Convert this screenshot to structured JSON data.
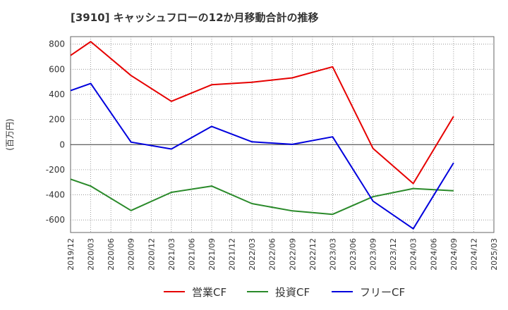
{
  "chart_data": {
    "type": "line",
    "title": "[3910]  キャッシュフローの12か月移動合計の推移",
    "ylabel": "(百万円)",
    "xlabel": "",
    "ylim": [
      -700,
      860
    ],
    "yticks": [
      800,
      600,
      400,
      200,
      0,
      -200,
      -400,
      -600
    ],
    "x": [
      "2019/12",
      "2020/03",
      "2020/06",
      "2020/09",
      "2020/12",
      "2021/03",
      "2021/06",
      "2021/09",
      "2021/12",
      "2022/03",
      "2022/06",
      "2022/09",
      "2022/12",
      "2023/03",
      "2023/06",
      "2023/09",
      "2023/12",
      "2024/03",
      "2024/06",
      "2024/09",
      "2024/12",
      "2025/03"
    ],
    "grid": true,
    "legend_position": "bottom",
    "series": [
      {
        "name": "営業CF",
        "color": "#e60000",
        "values": [
          710,
          820,
          null,
          550,
          null,
          345,
          null,
          477,
          null,
          497,
          null,
          532,
          null,
          620,
          null,
          -30,
          null,
          -310,
          null,
          225,
          null,
          null
        ]
      },
      {
        "name": "投資CF",
        "color": "#2a8a2a",
        "values": [
          -275,
          -330,
          null,
          -525,
          null,
          -380,
          null,
          -330,
          null,
          -470,
          null,
          -528,
          null,
          -555,
          null,
          -415,
          null,
          -350,
          null,
          -368,
          null,
          null
        ]
      },
      {
        "name": "フリーCF",
        "color": "#0000dd",
        "values": [
          430,
          487,
          null,
          20,
          null,
          -35,
          null,
          145,
          null,
          22,
          null,
          2,
          null,
          62,
          null,
          -450,
          null,
          -670,
          null,
          -145,
          null,
          null
        ]
      }
    ]
  }
}
